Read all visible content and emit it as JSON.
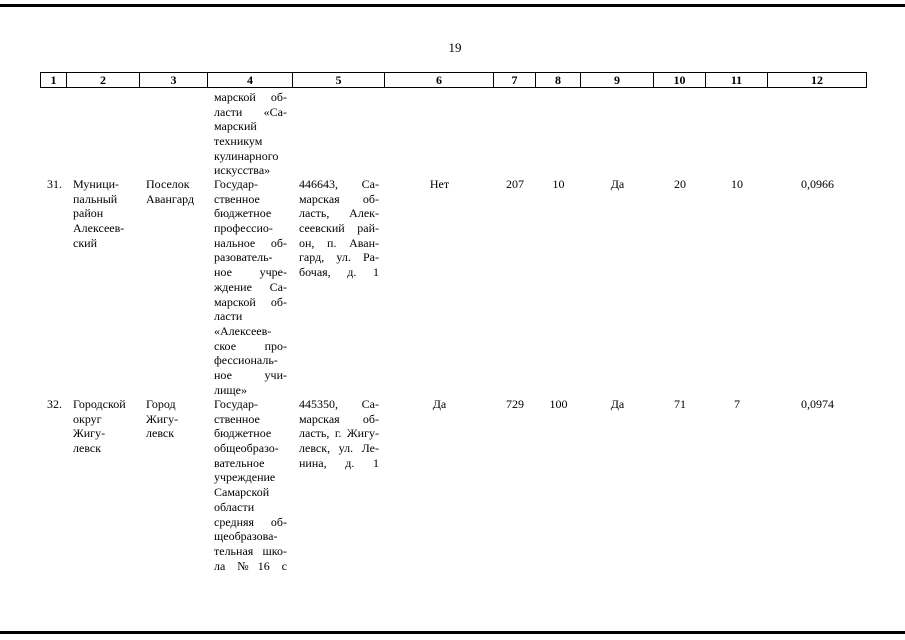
{
  "page_number": "19",
  "table": {
    "header": [
      "1",
      "2",
      "3",
      "4",
      "5",
      "6",
      "7",
      "8",
      "9",
      "10",
      "11",
      "12"
    ],
    "rows": [
      {
        "cells": {
          "4": [
            "марской об-",
            "ласти «Са-",
            "марский",
            "техникум",
            "кулинарного",
            "искусства»"
          ]
        }
      },
      {
        "cells": {
          "1": [
            "31."
          ],
          "2": [
            "Муници-",
            "пальный",
            "район",
            "Алексеев-",
            "ский"
          ],
          "3": [
            "Поселок",
            "Авангард"
          ],
          "4": [
            "Государ-",
            "ственное",
            "бюджетное",
            "профессио-",
            "нальное об-",
            "разователь-",
            "ное учре-",
            "ждение Са-",
            "марской об-",
            "ласти",
            "«Алексеев-",
            "ское про-",
            "фессиональ-",
            "ное учи-",
            "лище»"
          ],
          "5": [
            "446643, Са-",
            "марская об-",
            "ласть, Алек-",
            "сеевский рай-",
            "он, п. Аван-",
            "гард, ул. Ра-",
            "бочая, д. 1"
          ],
          "6": [
            "Нет"
          ],
          "7": [
            "207"
          ],
          "8": [
            "10"
          ],
          "9": [
            "Да"
          ],
          "10": [
            "20"
          ],
          "11": [
            "10"
          ],
          "12": [
            "0,0966"
          ]
        }
      },
      {
        "cells": {
          "1": [
            "32."
          ],
          "2": [
            "Городской",
            "округ",
            "Жигу-",
            "левск"
          ],
          "3": [
            "Город",
            "Жигу-",
            "левск"
          ],
          "4": [
            "Государ-",
            "ственное",
            "бюджетное",
            "общеобразо-",
            "вательное",
            "учреждение",
            "Самарской",
            "области",
            "средняя об-",
            "щеобразова-",
            "тельная шко-",
            "ла №16 с"
          ],
          "5": [
            "445350, Са-",
            "марская об-",
            "ласть, г. Жигу-",
            "левск, ул. Ле-",
            "нина, д. 1"
          ],
          "6": [
            "Да"
          ],
          "7": [
            "729"
          ],
          "8": [
            "100"
          ],
          "9": [
            "Да"
          ],
          "10": [
            "71"
          ],
          "11": [
            "7"
          ],
          "12": [
            "0,0974"
          ]
        }
      }
    ]
  }
}
